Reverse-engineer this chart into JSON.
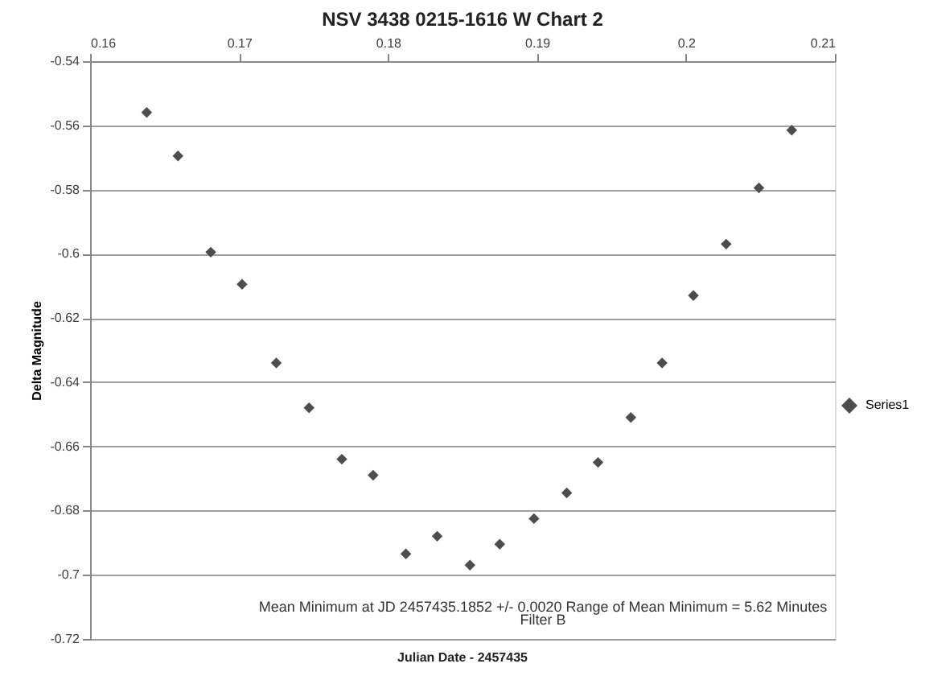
{
  "chart_data": {
    "type": "scatter",
    "title": "NSV 3438  0215-1616  W  Chart 2",
    "xlabel": "Julian Date  -  2457435",
    "ylabel": "Delta  Magnitude",
    "annotations": [
      "Mean Minimum at JD 2457435.1852  +/-  0.0020      Range of Mean Minimum = 5.62 Minutes",
      "Filter B"
    ],
    "x": [
      0.1638,
      0.1659,
      0.1681,
      0.1702,
      0.1725,
      0.1747,
      0.1769,
      0.179,
      0.1812,
      0.1833,
      0.1855,
      0.1875,
      0.1898,
      0.192,
      0.1941,
      0.1963,
      0.1984,
      0.2005,
      0.2027,
      0.2049,
      0.2071
    ],
    "series": [
      {
        "name": "Series1",
        "color": "#4d4d4d",
        "values": [
          -0.556,
          -0.5695,
          -0.5995,
          -0.6095,
          -0.634,
          -0.648,
          -0.664,
          -0.669,
          -0.6935,
          -0.688,
          -0.697,
          -0.6905,
          -0.6825,
          -0.6745,
          -0.665,
          -0.651,
          -0.634,
          -0.613,
          -0.597,
          -0.5795,
          -0.5615
        ]
      }
    ],
    "xlim": [
      0.16,
      0.21
    ],
    "xticks": [
      0.16,
      0.17,
      0.18,
      0.19,
      0.2,
      0.21
    ],
    "ylim": [
      -0.72,
      -0.54
    ],
    "yticks": [
      -0.54,
      -0.56,
      -0.58,
      -0.6,
      -0.62,
      -0.64,
      -0.66,
      -0.68,
      -0.7,
      -0.72
    ],
    "grid": "y",
    "legend": "right",
    "marker": "diamond"
  }
}
